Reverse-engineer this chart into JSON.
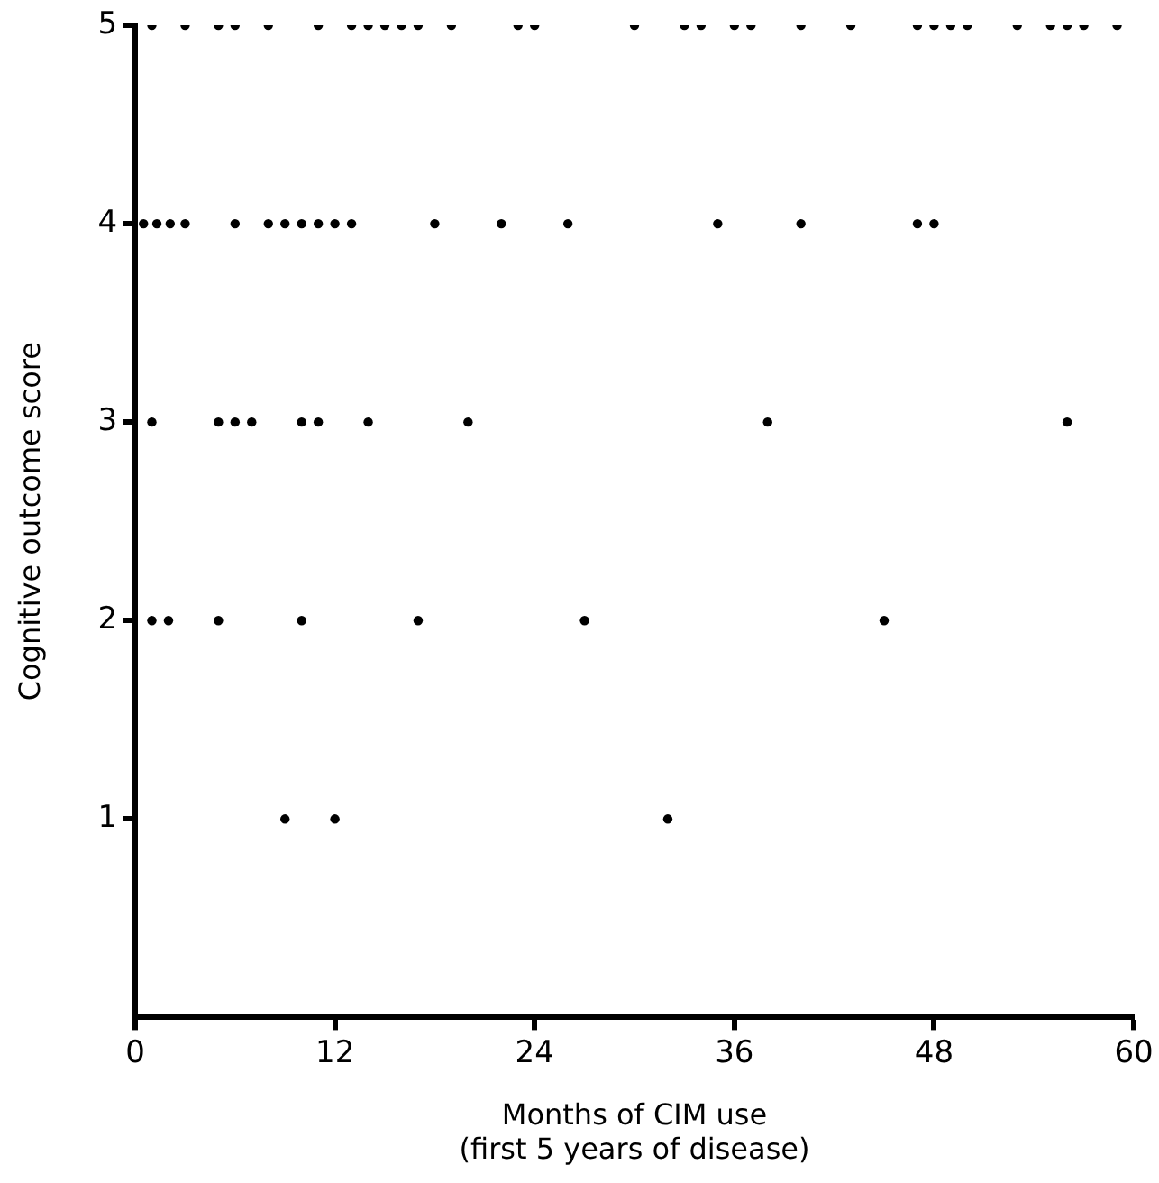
{
  "chart_data": {
    "type": "scatter",
    "xlabel": "Months of CIM use\n(first 5 years of disease)",
    "ylabel": "Cognitive outcome score",
    "xlim": [
      0,
      60
    ],
    "xticks": [
      0,
      12,
      24,
      36,
      48,
      60
    ],
    "ylim": [
      0,
      5
    ],
    "yticks": [
      1,
      2,
      3,
      4,
      5
    ],
    "grid": false,
    "legend": false,
    "marker": "circle",
    "series": [
      {
        "color": "#000000",
        "x": [
          1,
          3,
          5,
          6,
          8,
          11,
          13,
          14,
          15,
          16,
          17,
          19,
          23,
          24,
          30,
          33,
          34,
          36,
          37,
          40,
          43,
          47,
          48,
          49,
          50,
          53,
          55,
          56,
          57,
          59
        ],
        "values": [
          5,
          5,
          5,
          5,
          5,
          5,
          5,
          5,
          5,
          5,
          5,
          5,
          5,
          5,
          5,
          5,
          5,
          5,
          5,
          5,
          5,
          5,
          5,
          5,
          5,
          5,
          5,
          5,
          5,
          5
        ]
      },
      {
        "color": "#000000",
        "x": [
          0.5,
          1.3,
          2.1,
          3,
          6,
          8,
          9,
          10,
          11,
          12,
          13,
          18,
          22,
          26,
          35,
          40,
          47,
          48
        ],
        "values": [
          4,
          4,
          4,
          4,
          4,
          4,
          4,
          4,
          4,
          4,
          4,
          4,
          4,
          4,
          4,
          4,
          4,
          4
        ]
      },
      {
        "color": "#000000",
        "x": [
          1,
          5,
          6,
          7,
          10,
          11,
          14,
          20,
          38,
          56
        ],
        "values": [
          3,
          3,
          3,
          3,
          3,
          3,
          3,
          3,
          3,
          3
        ]
      },
      {
        "color": "#000000",
        "x": [
          1,
          2,
          5,
          10,
          17,
          27,
          45
        ],
        "values": [
          2,
          2,
          2,
          2,
          2,
          2,
          2
        ]
      },
      {
        "color": "#000000",
        "x": [
          9,
          12,
          32
        ],
        "values": [
          1,
          1,
          1
        ]
      }
    ]
  }
}
